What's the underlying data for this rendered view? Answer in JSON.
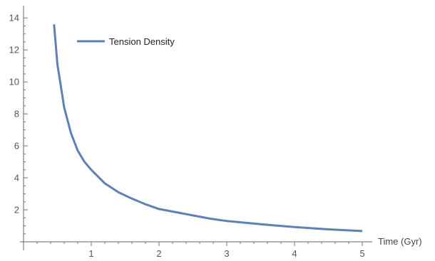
{
  "chart_data": {
    "type": "line",
    "title": "",
    "xlabel": "Time (Gyr)",
    "ylabel": "",
    "xlim": [
      0,
      5
    ],
    "ylim": [
      0,
      14.5
    ],
    "x_ticks": [
      1,
      2,
      3,
      4,
      5
    ],
    "y_ticks": [
      2,
      4,
      6,
      8,
      10,
      12,
      14
    ],
    "legend_position": "top-left",
    "grid": false,
    "series": [
      {
        "name": "Tension Density",
        "color": "#5E81B5",
        "x": [
          0.45,
          0.5,
          0.6,
          0.7,
          0.8,
          0.9,
          1.0,
          1.2,
          1.4,
          1.6,
          1.8,
          2.0,
          2.25,
          2.5,
          2.75,
          3.0,
          3.5,
          4.0,
          4.5,
          5.0
        ],
        "y": [
          13.6,
          11.1,
          8.4,
          6.8,
          5.7,
          5.0,
          4.5,
          3.65,
          3.1,
          2.7,
          2.35,
          2.05,
          1.85,
          1.65,
          1.45,
          1.3,
          1.1,
          0.92,
          0.78,
          0.67
        ]
      }
    ]
  }
}
